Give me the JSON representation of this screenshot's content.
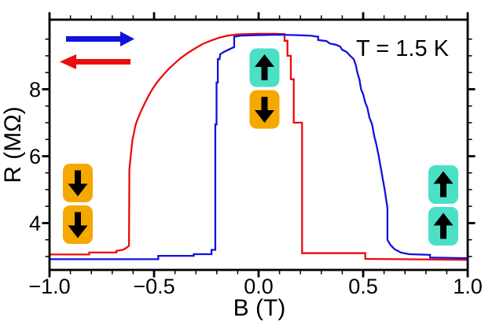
{
  "chart_data": {
    "type": "line",
    "title": "",
    "xlabel": "B (T)",
    "ylabel": "R (MΩ)",
    "annotation": "T = 1.5 K",
    "xlim": [
      -1.0,
      1.0
    ],
    "ylim": [
      2.6,
      10.08
    ],
    "x_major_ticks": [
      -1.0,
      -0.5,
      0.0,
      0.5,
      1.0
    ],
    "x_tick_labels": [
      "−1.0",
      "−0.5",
      "0.0",
      "0.5",
      "1.0"
    ],
    "x_minor_step": 0.1,
    "y_major_ticks": [
      4,
      6,
      8
    ],
    "y_tick_labels": [
      "8",
      "6",
      "4"
    ],
    "y_minor_step": 0.5,
    "y_minor_range": [
      3.0,
      9.5
    ],
    "grid": false,
    "legend_position": "upper-left",
    "series": [
      {
        "id": "sweep-down",
        "name": "decreasing field sweep (red, arrow left)",
        "color": "#ec0c0c",
        "direction": "left",
        "points": [
          [
            -1.0,
            3.06
          ],
          [
            -0.81,
            3.06
          ],
          [
            -0.81,
            3.12
          ],
          [
            -0.68,
            3.12
          ],
          [
            -0.68,
            3.17
          ],
          [
            -0.65,
            3.2
          ],
          [
            -0.635,
            3.25
          ],
          [
            -0.62,
            3.32
          ],
          [
            -0.618,
            5.6
          ],
          [
            -0.61,
            6.1
          ],
          [
            -0.603,
            6.5
          ],
          [
            -0.596,
            6.7
          ],
          [
            -0.59,
            6.9
          ],
          [
            -0.582,
            7.05
          ],
          [
            -0.572,
            7.2
          ],
          [
            -0.56,
            7.38
          ],
          [
            -0.547,
            7.55
          ],
          [
            -0.533,
            7.72
          ],
          [
            -0.518,
            7.9
          ],
          [
            -0.503,
            8.05
          ],
          [
            -0.487,
            8.2
          ],
          [
            -0.47,
            8.33
          ],
          [
            -0.45,
            8.47
          ],
          [
            -0.428,
            8.62
          ],
          [
            -0.402,
            8.77
          ],
          [
            -0.373,
            8.93
          ],
          [
            -0.34,
            9.08
          ],
          [
            -0.305,
            9.22
          ],
          [
            -0.268,
            9.35
          ],
          [
            -0.23,
            9.45
          ],
          [
            -0.19,
            9.54
          ],
          [
            -0.15,
            9.6
          ],
          [
            -0.1,
            9.64
          ],
          [
            0.0,
            9.66
          ],
          [
            0.08,
            9.66
          ],
          [
            0.124,
            9.65
          ],
          [
            0.124,
            9.45
          ],
          [
            0.138,
            9.45
          ],
          [
            0.138,
            9.0
          ],
          [
            0.154,
            9.0
          ],
          [
            0.154,
            8.3
          ],
          [
            0.168,
            8.3
          ],
          [
            0.168,
            7.0
          ],
          [
            0.208,
            7.0
          ],
          [
            0.208,
            3.1
          ],
          [
            0.51,
            3.1
          ],
          [
            0.51,
            2.93
          ],
          [
            1.0,
            2.9
          ]
        ]
      },
      {
        "id": "sweep-up",
        "name": "increasing field sweep (blue, arrow right)",
        "color": "#1212dd",
        "direction": "right",
        "points": [
          [
            -1.0,
            2.92
          ],
          [
            -0.48,
            2.92
          ],
          [
            -0.48,
            3.02
          ],
          [
            -0.31,
            3.02
          ],
          [
            -0.31,
            3.07
          ],
          [
            -0.225,
            3.07
          ],
          [
            -0.225,
            3.2
          ],
          [
            -0.207,
            3.2
          ],
          [
            -0.207,
            6.95
          ],
          [
            -0.201,
            6.95
          ],
          [
            -0.201,
            8.2
          ],
          [
            -0.195,
            8.2
          ],
          [
            -0.195,
            8.9
          ],
          [
            -0.187,
            8.9
          ],
          [
            -0.183,
            9.05
          ],
          [
            -0.165,
            9.12
          ],
          [
            -0.145,
            9.18
          ],
          [
            -0.125,
            9.24
          ],
          [
            -0.117,
            9.26
          ],
          [
            -0.117,
            9.57
          ],
          [
            -0.09,
            9.6
          ],
          [
            0.0,
            9.62
          ],
          [
            0.1,
            9.63
          ],
          [
            0.18,
            9.62
          ],
          [
            0.25,
            9.6
          ],
          [
            0.285,
            9.57
          ],
          [
            0.285,
            9.47
          ],
          [
            0.325,
            9.44
          ],
          [
            0.34,
            9.37
          ],
          [
            0.37,
            9.33
          ],
          [
            0.39,
            9.28
          ],
          [
            0.4,
            9.18
          ],
          [
            0.42,
            9.12
          ],
          [
            0.438,
            9.0
          ],
          [
            0.455,
            8.9
          ],
          [
            0.465,
            8.72
          ],
          [
            0.472,
            8.5
          ],
          [
            0.482,
            8.3
          ],
          [
            0.49,
            8.0
          ],
          [
            0.5,
            7.85
          ],
          [
            0.51,
            7.6
          ],
          [
            0.52,
            7.45
          ],
          [
            0.53,
            7.15
          ],
          [
            0.543,
            6.95
          ],
          [
            0.553,
            6.6
          ],
          [
            0.563,
            6.35
          ],
          [
            0.573,
            6.05
          ],
          [
            0.583,
            5.7
          ],
          [
            0.593,
            5.35
          ],
          [
            0.603,
            5.0
          ],
          [
            0.61,
            4.7
          ],
          [
            0.616,
            4.45
          ],
          [
            0.616,
            3.5
          ],
          [
            0.63,
            3.35
          ],
          [
            0.65,
            3.22
          ],
          [
            0.68,
            3.12
          ],
          [
            0.72,
            3.07
          ],
          [
            0.82,
            3.05
          ],
          [
            0.82,
            2.97
          ],
          [
            1.0,
            2.95
          ]
        ]
      }
    ],
    "state_markers": [
      {
        "id": "left",
        "description": "both layers magnetized down (low resistance, negative field)",
        "spins": [
          "down",
          "down"
        ],
        "box_colors": [
          "#f5a800",
          "#f5a800"
        ]
      },
      {
        "id": "center",
        "description": "antiparallel state (high resistance, near zero field)",
        "spins": [
          "up",
          "down"
        ],
        "box_colors": [
          "#4be0c6",
          "#f5a800"
        ]
      },
      {
        "id": "right",
        "description": "both layers magnetized up (low resistance, positive field)",
        "spins": [
          "up",
          "up"
        ],
        "box_colors": [
          "#4be0c6",
          "#4be0c6"
        ]
      }
    ]
  },
  "legend": {
    "sweep_right": {
      "color": "#1212dd",
      "direction": "right",
      "meaning": "increasing field sweep"
    },
    "sweep_left": {
      "color": "#ec0c0c",
      "direction": "left",
      "meaning": "decreasing field sweep"
    }
  },
  "colors": {
    "axis": "#000000",
    "background": "#ffffff",
    "spin_up_box": "#4be0c6",
    "spin_down_box": "#f5a800",
    "arrow_glyph": "#000000"
  }
}
